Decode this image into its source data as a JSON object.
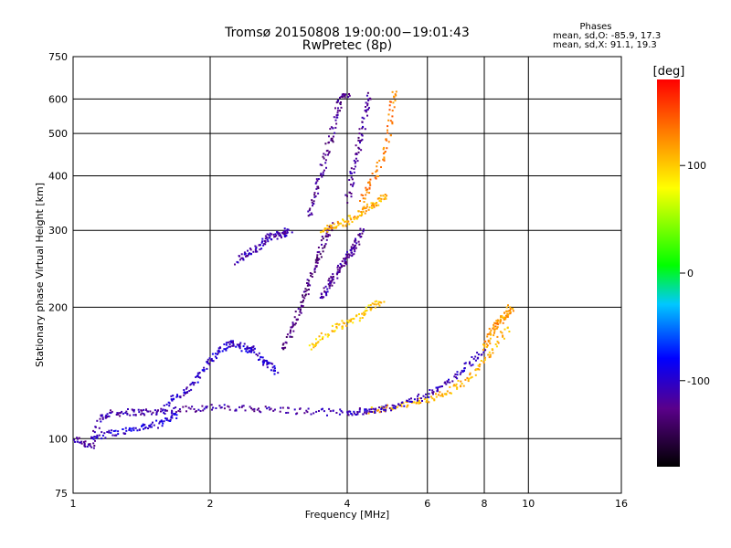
{
  "chart_data": {
    "type": "scatter",
    "title": "Tromsø 20150808 19:00:00−19:01:43",
    "subtitle": "RwPretec (8p)",
    "xlabel": "Frequency [MHz]",
    "ylabel": "Stationary phase Virtual Height [km]",
    "x_scale": "log",
    "y_scale": "log",
    "xlim": [
      1,
      16
    ],
    "ylim": [
      75,
      750
    ],
    "x_ticks": [
      1,
      2,
      4,
      6,
      8,
      10,
      16
    ],
    "y_ticks": [
      75,
      100,
      200,
      300,
      400,
      500,
      600,
      750
    ],
    "x_grid": [
      2,
      4,
      6,
      8,
      10
    ],
    "y_grid": [
      100,
      200,
      300,
      400,
      500,
      600
    ],
    "grid": true,
    "stats": {
      "title": "Phases",
      "line1": "mean, sd,O:  -85.9, 17.3",
      "line2": "mean, sd,X:  91.1, 19.3"
    },
    "colorbar": {
      "label": "[deg]",
      "range": [
        -180,
        180
      ],
      "ticks": [
        100,
        0,
        -100
      ],
      "colormap": "rainbow"
    },
    "traces": [
      {
        "x": [
          1.0,
          1.05,
          1.1,
          1.15,
          1.2,
          1.3,
          1.4,
          1.5,
          1.6,
          1.8,
          2.0,
          2.3,
          2.6,
          3.0,
          3.5,
          4.0,
          4.5,
          5.0
        ],
        "y": [
          100,
          98,
          96,
          112,
          114,
          115,
          115,
          115,
          116,
          117,
          118,
          117,
          117,
          116,
          115,
          115,
          116,
          118
        ],
        "phase": -115
      },
      {
        "x": [
          1.1,
          1.2,
          1.3,
          1.4,
          1.5,
          1.6,
          1.7
        ],
        "y": [
          100,
          103,
          104,
          106,
          107,
          110,
          114
        ],
        "phase": -95
      },
      {
        "x": [
          1.6,
          1.7,
          1.8,
          1.9,
          2.0,
          2.1,
          2.2,
          2.3,
          2.4,
          2.5,
          2.6,
          2.7,
          2.8
        ],
        "y": [
          120,
          125,
          130,
          140,
          150,
          160,
          165,
          165,
          160,
          160,
          150,
          148,
          140
        ],
        "phase": -100
      },
      {
        "x": [
          2.3,
          2.4,
          2.5,
          2.6,
          2.7,
          2.8,
          2.9,
          3.0
        ],
        "y": [
          255,
          265,
          270,
          280,
          290,
          292,
          295,
          300
        ],
        "phase": -110
      },
      {
        "x": [
          2.9,
          3.0,
          3.1,
          3.2,
          3.3,
          3.4,
          3.5,
          3.6,
          3.7
        ],
        "y": [
          160,
          175,
          190,
          210,
          225,
          250,
          270,
          290,
          310
        ],
        "phase": -130
      },
      {
        "x": [
          3.3,
          3.4,
          3.5,
          3.6,
          3.7,
          3.8,
          3.9,
          4.0
        ],
        "y": [
          320,
          360,
          400,
          450,
          500,
          560,
          600,
          620
        ],
        "phase": -125
      },
      {
        "x": [
          3.5,
          3.6,
          3.7,
          3.8,
          3.9,
          4.0,
          4.1,
          4.2,
          4.3
        ],
        "y": [
          210,
          220,
          230,
          240,
          250,
          260,
          270,
          280,
          300
        ],
        "phase": -120
      },
      {
        "x": [
          4.0,
          4.1,
          4.2,
          4.3,
          4.4,
          4.5
        ],
        "y": [
          350,
          400,
          450,
          500,
          560,
          620
        ],
        "phase": -120
      },
      {
        "x": [
          3.5,
          3.7,
          3.9,
          4.1,
          4.3,
          4.5,
          4.7,
          4.9
        ],
        "y": [
          300,
          305,
          310,
          320,
          330,
          340,
          350,
          360
        ],
        "phase": 110
      },
      {
        "x": [
          4.3,
          4.5,
          4.7,
          4.9,
          5.0,
          5.1
        ],
        "y": [
          350,
          380,
          420,
          480,
          560,
          640
        ],
        "phase": 130
      },
      {
        "x": [
          3.3,
          3.5,
          3.8,
          4.0,
          4.3,
          4.5,
          4.8
        ],
        "y": [
          160,
          170,
          180,
          185,
          190,
          200,
          210
        ],
        "phase": 100
      },
      {
        "x": [
          4.5,
          5.0,
          5.5,
          6.0,
          6.5,
          7.0,
          7.5,
          8.0,
          8.5,
          9.0
        ],
        "y": [
          116,
          118,
          120,
          123,
          127,
          132,
          140,
          150,
          165,
          180
        ],
        "phase": 110
      },
      {
        "x": [
          4.0,
          4.5,
          5.0,
          5.5,
          6.0,
          6.5,
          7.0,
          7.5,
          8.0
        ],
        "y": [
          115,
          116,
          118,
          121,
          126,
          132,
          140,
          150,
          160
        ],
        "phase": -105
      },
      {
        "x": [
          8.0,
          8.2,
          8.4,
          8.6,
          8.8,
          9.0,
          9.2
        ],
        "y": [
          160,
          170,
          180,
          185,
          190,
          195,
          200
        ],
        "phase": 120
      }
    ]
  }
}
